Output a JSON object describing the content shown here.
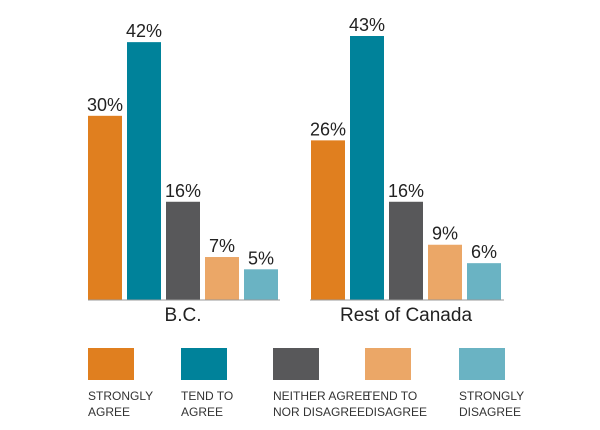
{
  "chart_data": {
    "type": "bar",
    "groups": [
      "B.C.",
      "Rest of Canada"
    ],
    "series": [
      {
        "name": "STRONGLY AGREE",
        "legend_lines": [
          "STRONGLY",
          "AGREE"
        ],
        "color": "#e07f1f",
        "values": [
          30,
          26
        ]
      },
      {
        "name": "TEND TO AGREE",
        "legend_lines": [
          "TEND TO",
          "AGREE"
        ],
        "color": "#00829a",
        "values": [
          42,
          43
        ]
      },
      {
        "name": "NEITHER AGREE NOR DISAGREE",
        "legend_lines": [
          "NEITHER AGREE",
          "NOR DISAGREE"
        ],
        "color": "#58585a",
        "values": [
          16,
          16
        ]
      },
      {
        "name": "TEND TO DISAGREE",
        "legend_lines": [
          "TEND TO",
          "DISAGREE"
        ],
        "color": "#eba767",
        "values": [
          7,
          9
        ]
      },
      {
        "name": "STRONGLY DISAGREE",
        "legend_lines": [
          "STRONGLY",
          "DISAGREE"
        ],
        "color": "#6ab3c3",
        "values": [
          5,
          6
        ]
      }
    ],
    "value_suffix": "%",
    "ylim": [
      0,
      43
    ],
    "legend_position": "bottom",
    "grid": false,
    "title": "",
    "xlabel": "",
    "ylabel": ""
  }
}
